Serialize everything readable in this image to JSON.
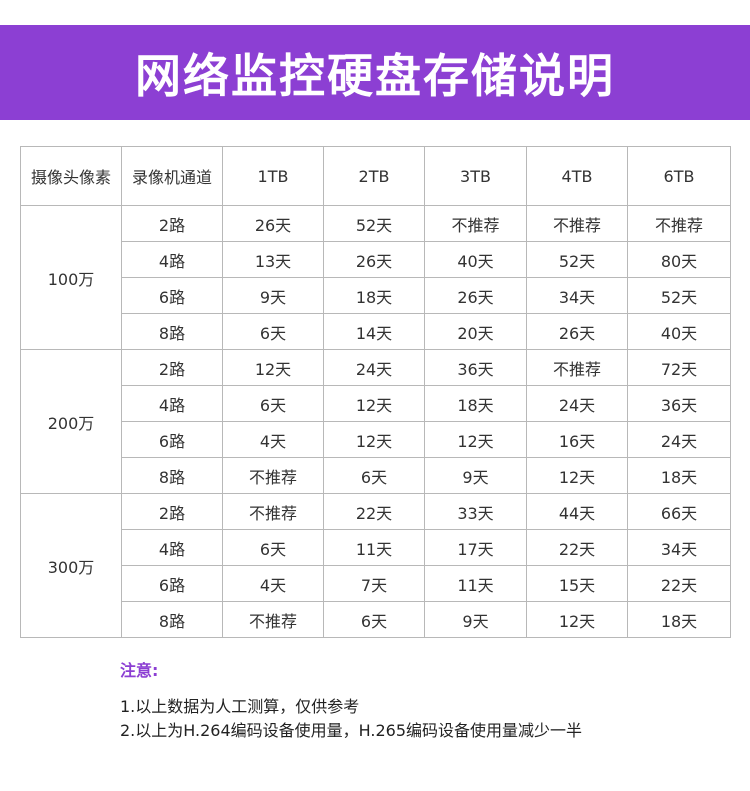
{
  "header": {
    "title": "网络监控硬盘存储说明"
  },
  "table": {
    "headers": [
      "摄像头像素",
      "录像机通道",
      "1TB",
      "2TB",
      "3TB",
      "4TB",
      "6TB"
    ],
    "groups": [
      {
        "pixel": "100万",
        "rows": [
          {
            "channel": "2路",
            "values": [
              "26天",
              "52天",
              "不推荐",
              "不推荐",
              "不推荐"
            ]
          },
          {
            "channel": "4路",
            "values": [
              "13天",
              "26天",
              "40天",
              "52天",
              "80天"
            ]
          },
          {
            "channel": "6路",
            "values": [
              "9天",
              "18天",
              "26天",
              "34天",
              "52天"
            ]
          },
          {
            "channel": "8路",
            "values": [
              "6天",
              "14天",
              "20天",
              "26天",
              "40天"
            ]
          }
        ]
      },
      {
        "pixel": "200万",
        "rows": [
          {
            "channel": "2路",
            "values": [
              "12天",
              "24天",
              "36天",
              "不推荐",
              "72天"
            ]
          },
          {
            "channel": "4路",
            "values": [
              "6天",
              "12天",
              "18天",
              "24天",
              "36天"
            ]
          },
          {
            "channel": "6路",
            "values": [
              "4天",
              "12天",
              "12天",
              "16天",
              "24天"
            ]
          },
          {
            "channel": "8路",
            "values": [
              "不推荐",
              "6天",
              "9天",
              "12天",
              "18天"
            ]
          }
        ]
      },
      {
        "pixel": "300万",
        "rows": [
          {
            "channel": "2路",
            "values": [
              "不推荐",
              "22天",
              "33天",
              "44天",
              "66天"
            ]
          },
          {
            "channel": "4路",
            "values": [
              "6天",
              "11天",
              "17天",
              "22天",
              "34天"
            ]
          },
          {
            "channel": "6路",
            "values": [
              "4天",
              "7天",
              "11天",
              "15天",
              "22天"
            ]
          },
          {
            "channel": "8路",
            "values": [
              "不推荐",
              "6天",
              "9天",
              "12天",
              "18天"
            ]
          }
        ]
      }
    ]
  },
  "notes": {
    "title": "注意:",
    "lines": [
      "1.以上数据为人工测算，仅供参考",
      "2.以上为H.264编码设备使用量，H.265编码设备使用量减少一半"
    ]
  },
  "colors": {
    "accent": "#8c3fd3",
    "border": "#b8b8b8"
  }
}
